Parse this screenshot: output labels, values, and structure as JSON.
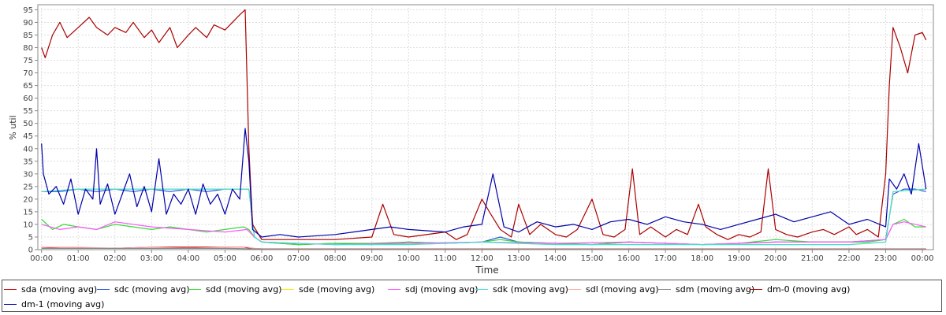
{
  "chart_data": {
    "type": "line",
    "xlabel": "Time",
    "ylabel": "% util",
    "ylim": [
      0,
      97
    ],
    "y_ticks": [
      "0",
      "5",
      "10",
      "15",
      "20",
      "25",
      "30",
      "35",
      "40",
      "45",
      "50",
      "55",
      "60",
      "65",
      "70",
      "75",
      "80",
      "85",
      "90",
      "95"
    ],
    "x_ticks": [
      "00:00",
      "01:00",
      "02:00",
      "03:00",
      "04:00",
      "05:00",
      "06:00",
      "07:00",
      "08:00",
      "09:00",
      "10:00",
      "11:00",
      "12:00",
      "13:00",
      "14:00",
      "15:00",
      "16:00",
      "17:00",
      "18:00",
      "19:00",
      "20:00",
      "21:00",
      "22:00",
      "23:00",
      "00:00"
    ],
    "xlim_hours": [
      -0.1,
      24.3
    ],
    "grid": true,
    "legend_position": "bottom",
    "series": [
      {
        "name": "sda (moving avg)",
        "color": "#cc0000",
        "x": [
          0,
          0.5,
          1,
          2,
          3,
          4,
          5,
          5.5,
          5.7,
          6,
          8,
          10,
          12,
          14,
          16,
          18,
          20,
          22,
          23,
          23.5,
          24.1
        ],
        "y": [
          1,
          0.5,
          0.5,
          0.5,
          1,
          1,
          1,
          1,
          0.5,
          0.3,
          0.3,
          0.3,
          0.3,
          0.3,
          0.3,
          0.3,
          0.3,
          0.3,
          0.3,
          0.3,
          0.3
        ]
      },
      {
        "name": "sdc (moving avg)",
        "color": "#2255dd",
        "x": [
          0,
          0.5,
          1,
          1.5,
          2,
          2.5,
          3,
          3.5,
          4,
          4.5,
          5,
          5.5,
          5.65,
          5.8,
          6,
          7,
          8,
          9,
          10,
          11,
          12,
          12.5,
          13,
          14,
          15,
          16,
          17,
          18,
          19,
          20,
          21,
          22,
          23,
          23.2,
          23.5,
          23.8,
          24.1
        ],
        "y": [
          23,
          23,
          24,
          23,
          24,
          23,
          24,
          23,
          24,
          23,
          24,
          24,
          24,
          5,
          3,
          2,
          2.5,
          2,
          3,
          2.5,
          3,
          5,
          3,
          2.5,
          2,
          3,
          2.5,
          2,
          2.5,
          3,
          3,
          3,
          4,
          22,
          24,
          24,
          23
        ]
      },
      {
        "name": "sdd (moving avg)",
        "color": "#33dd33",
        "x": [
          0,
          0.3,
          0.6,
          1,
          1.5,
          2,
          2.5,
          3,
          3.5,
          4,
          4.5,
          5,
          5.5,
          5.65,
          5.8,
          6,
          7,
          8,
          9,
          10,
          11,
          12,
          12.5,
          13,
          14,
          15,
          16,
          17,
          18,
          19,
          20,
          21,
          22,
          22.5,
          23,
          23.2,
          23.5,
          23.8,
          24.1
        ],
        "y": [
          12,
          8,
          10,
          9,
          8,
          10,
          9,
          8,
          9,
          8,
          7,
          8,
          9,
          8,
          5,
          3,
          2,
          2.5,
          2.5,
          3,
          2.5,
          3,
          4,
          3,
          2.5,
          2,
          3,
          2.5,
          2,
          2.5,
          4,
          3,
          3,
          3,
          4,
          10,
          12,
          9,
          9
        ]
      },
      {
        "name": "sde (moving avg)",
        "color": "#eeee00",
        "x": [
          0,
          1,
          2,
          3,
          4,
          5,
          5.65,
          5.8,
          6,
          8,
          10,
          12,
          14,
          16,
          18,
          20,
          22,
          23,
          23.2,
          24.1
        ],
        "y": [
          23,
          24,
          24,
          24,
          24,
          24,
          24,
          5,
          3,
          2,
          2,
          3,
          2,
          2,
          2,
          2,
          2,
          3,
          23,
          24
        ]
      },
      {
        "name": "sdj (moving avg)",
        "color": "#ff55ff",
        "x": [
          0,
          0.5,
          1,
          1.5,
          2,
          3,
          4,
          5,
          5.6,
          5.8,
          6,
          8,
          10,
          12,
          14,
          16,
          18,
          20,
          22,
          23,
          23.2,
          23.5,
          24.1
        ],
        "y": [
          10,
          8,
          9,
          8,
          11,
          9,
          8,
          7,
          8,
          5,
          3,
          2,
          2.5,
          3,
          2.5,
          3,
          2,
          3,
          3,
          4,
          10,
          11,
          9
        ]
      },
      {
        "name": "sdk (moving avg)",
        "color": "#44dddd",
        "x": [
          0,
          1,
          2,
          3,
          4,
          5,
          5.65,
          5.8,
          6,
          8,
          10,
          12,
          14,
          16,
          18,
          20,
          22,
          23,
          23.2,
          24.1
        ],
        "y": [
          23,
          24,
          24,
          24,
          24,
          24,
          24,
          5,
          3,
          2,
          2,
          3,
          2,
          2,
          2,
          2,
          2,
          3,
          23,
          24
        ]
      },
      {
        "name": "sdl (moving avg)",
        "color": "#ffaaaa",
        "x": [
          0,
          0.5,
          1,
          2,
          3,
          4,
          5,
          5.6,
          5.8,
          6,
          8,
          10,
          12,
          14,
          16,
          18,
          20,
          22,
          23,
          23.2,
          24.1
        ],
        "y": [
          1,
          1,
          1,
          0.5,
          1,
          0.5,
          1,
          1,
          0.5,
          0.3,
          0.3,
          0.3,
          0.3,
          0.3,
          0.3,
          0.3,
          0.3,
          0.3,
          0.3,
          0.3,
          0.3
        ]
      },
      {
        "name": "sdm (moving avg)",
        "color": "#888888",
        "x": [
          0,
          1,
          2,
          3,
          4,
          5,
          5.8,
          6,
          8,
          10,
          12,
          14,
          16,
          18,
          20,
          22,
          23,
          24.1
        ],
        "y": [
          0.5,
          0.5,
          0.5,
          0.5,
          0.5,
          0.5,
          0.3,
          0.2,
          0.2,
          0.2,
          0.2,
          0.2,
          0.2,
          0.2,
          0.2,
          0.2,
          0.2,
          0.2
        ]
      },
      {
        "name": "dm-0 (moving avg)",
        "color": "#aa0000",
        "x": [
          0,
          0.1,
          0.3,
          0.5,
          0.7,
          1,
          1.3,
          1.5,
          1.8,
          2,
          2.3,
          2.5,
          2.8,
          3,
          3.2,
          3.5,
          3.7,
          4,
          4.2,
          4.5,
          4.7,
          5,
          5.2,
          5.4,
          5.55,
          5.65,
          5.75,
          6,
          7,
          8,
          9,
          9.3,
          9.6,
          10,
          11,
          11.3,
          11.6,
          12,
          12.2,
          12.5,
          12.8,
          13,
          13.3,
          13.6,
          14,
          14.3,
          14.6,
          15,
          15.3,
          15.6,
          15.9,
          16.1,
          16.3,
          16.6,
          17,
          17.3,
          17.6,
          17.9,
          18.1,
          18.4,
          18.7,
          19,
          19.3,
          19.6,
          19.8,
          20,
          20.3,
          20.6,
          21,
          21.3,
          21.6,
          22,
          22.2,
          22.5,
          22.8,
          23,
          23.1,
          23.2,
          23.4,
          23.6,
          23.8,
          24,
          24.1
        ],
        "y": [
          80,
          76,
          85,
          90,
          84,
          88,
          92,
          88,
          85,
          88,
          86,
          90,
          84,
          87,
          82,
          88,
          80,
          85,
          88,
          84,
          89,
          87,
          90,
          93,
          95,
          40,
          10,
          4,
          4,
          4,
          5,
          18,
          6,
          5,
          7,
          4,
          6,
          20,
          15,
          8,
          5,
          18,
          6,
          10,
          6,
          5,
          8,
          20,
          6,
          5,
          8,
          32,
          6,
          9,
          5,
          8,
          6,
          18,
          9,
          6,
          4,
          6,
          5,
          7,
          32,
          8,
          6,
          5,
          7,
          8,
          6,
          9,
          6,
          8,
          5,
          30,
          65,
          88,
          80,
          70,
          85,
          86,
          83
        ]
      },
      {
        "name": "dm-1 (moving avg)",
        "color": "#0000aa",
        "x": [
          0,
          0.05,
          0.2,
          0.4,
          0.6,
          0.8,
          1,
          1.2,
          1.4,
          1.5,
          1.6,
          1.8,
          2,
          2.2,
          2.4,
          2.6,
          2.8,
          3,
          3.2,
          3.4,
          3.6,
          3.8,
          4,
          4.2,
          4.4,
          4.6,
          4.8,
          5,
          5.2,
          5.4,
          5.55,
          5.65,
          5.75,
          6,
          6.5,
          7,
          8,
          8.5,
          9,
          9.5,
          10,
          11,
          11.5,
          12,
          12.3,
          12.6,
          13,
          13.5,
          14,
          14.5,
          15,
          15.5,
          16,
          16.5,
          17,
          17.5,
          18,
          18.5,
          19,
          19.5,
          20,
          20.5,
          21,
          21.5,
          22,
          22.5,
          23,
          23.1,
          23.3,
          23.5,
          23.7,
          23.9,
          24.1
        ],
        "y": [
          42,
          30,
          22,
          25,
          18,
          28,
          14,
          24,
          20,
          40,
          18,
          26,
          14,
          22,
          30,
          17,
          25,
          15,
          36,
          14,
          22,
          18,
          24,
          14,
          26,
          18,
          22,
          14,
          24,
          20,
          48,
          35,
          8,
          5,
          6,
          5,
          6,
          7,
          8,
          9,
          8,
          7,
          9,
          10,
          30,
          9,
          7,
          11,
          9,
          10,
          8,
          11,
          12,
          10,
          13,
          11,
          10,
          8,
          10,
          12,
          14,
          11,
          13,
          15,
          10,
          12,
          9,
          28,
          24,
          30,
          22,
          42,
          24
        ]
      }
    ]
  }
}
